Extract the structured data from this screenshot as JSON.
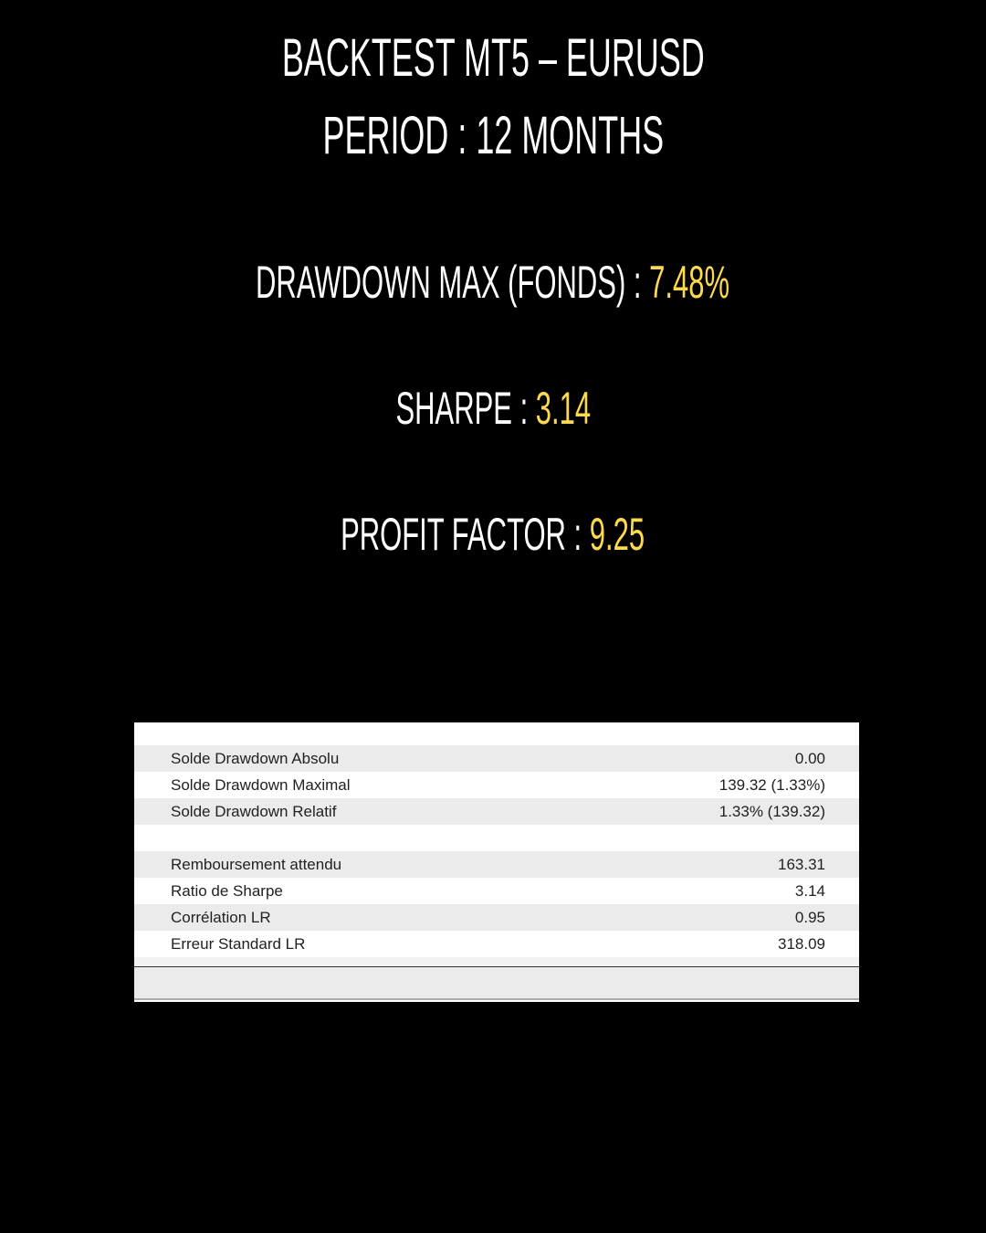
{
  "header": {
    "title": "BACKTEST MT5 – EURUSD",
    "period": "PERIOD : 12 MONTHS"
  },
  "metrics": [
    {
      "label": "DRAWDOWN MAX (FONDS) : ",
      "value": "7.48%"
    },
    {
      "label": "SHARPE : ",
      "value": "3.14"
    },
    {
      "label": "PROFIT FACTOR : ",
      "value": "9.25"
    }
  ],
  "colors": {
    "accent": "#fdd94f",
    "background": "#000000"
  },
  "table": {
    "rows": [
      {
        "label": "Solde Drawdown Absolu",
        "value": "0.00"
      },
      {
        "label": "Solde Drawdown Maximal",
        "value": "139.32 (1.33%)"
      },
      {
        "label": "Solde Drawdown Relatif",
        "value": "1.33% (139.32)"
      },
      {
        "label": "",
        "value": ""
      },
      {
        "label": "Remboursement attendu",
        "value": "163.31"
      },
      {
        "label": "Ratio de Sharpe",
        "value": "3.14"
      },
      {
        "label": "Corrélation LR",
        "value": "0.95"
      },
      {
        "label": "Erreur Standard LR",
        "value": "318.09"
      }
    ]
  }
}
